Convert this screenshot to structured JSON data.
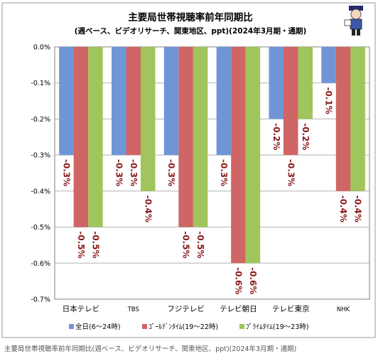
{
  "chart_data": {
    "type": "bar",
    "title": "主要局世帯視聴率前年同期比",
    "subtitle": "(週ベース、ビデオリサーチ、関東地区、ppt)(2024年3月期・通期)",
    "xlabel": "",
    "ylabel": "",
    "categories": [
      "日本テレビ",
      "TBS",
      "フジテレビ",
      "テレビ朝日",
      "テレビ東京",
      "NHK"
    ],
    "series": [
      {
        "name": "全日(6〜24時)",
        "color": "#6f95d6",
        "values": [
          -0.3,
          -0.3,
          -0.3,
          -0.3,
          -0.2,
          -0.1
        ]
      },
      {
        "name": "ｺﾞｰﾙﾃﾞﾝﾀｲﾑ(19〜22時)",
        "color": "#d06565",
        "values": [
          -0.5,
          -0.3,
          -0.5,
          -0.6,
          -0.3,
          -0.4
        ]
      },
      {
        "name": "ﾌﾟﾗｲﾑﾀｲﾑ(19〜23時)",
        "color": "#9fc55c",
        "values": [
          -0.5,
          -0.4,
          -0.5,
          -0.6,
          -0.2,
          -0.4
        ]
      }
    ],
    "data_labels": [
      [
        "-0.3%",
        "-0.3%",
        "-0.3%",
        "-0.3%",
        "-0.2%",
        "-0.1%"
      ],
      [
        "-0.5%",
        "-0.3%",
        "-0.5%",
        "-0.6%",
        "-0.3%",
        "-0.4%"
      ],
      [
        "-0.5%",
        "-0.4%",
        "-0.5%",
        "-0.6%",
        "-0.2%",
        "-0.4%"
      ]
    ],
    "yticks": [
      0,
      -0.1,
      -0.2,
      -0.3,
      -0.4,
      -0.5,
      -0.6,
      -0.7
    ],
    "ytick_labels": [
      "0.0%",
      "-0.1%",
      "-0.2%",
      "-0.3%",
      "-0.4%",
      "-0.5%",
      "-0.6%",
      "-0.7%"
    ],
    "ylim": [
      -0.7,
      0
    ],
    "grid": true,
    "legend_position": "bottom",
    "label_color": "#8b1a1a"
  },
  "caption": "主要局世帯視聴率前年同期比(週ベース、ビデオリサーチ、関東地区、ppt)(2024年3月期・通期)"
}
